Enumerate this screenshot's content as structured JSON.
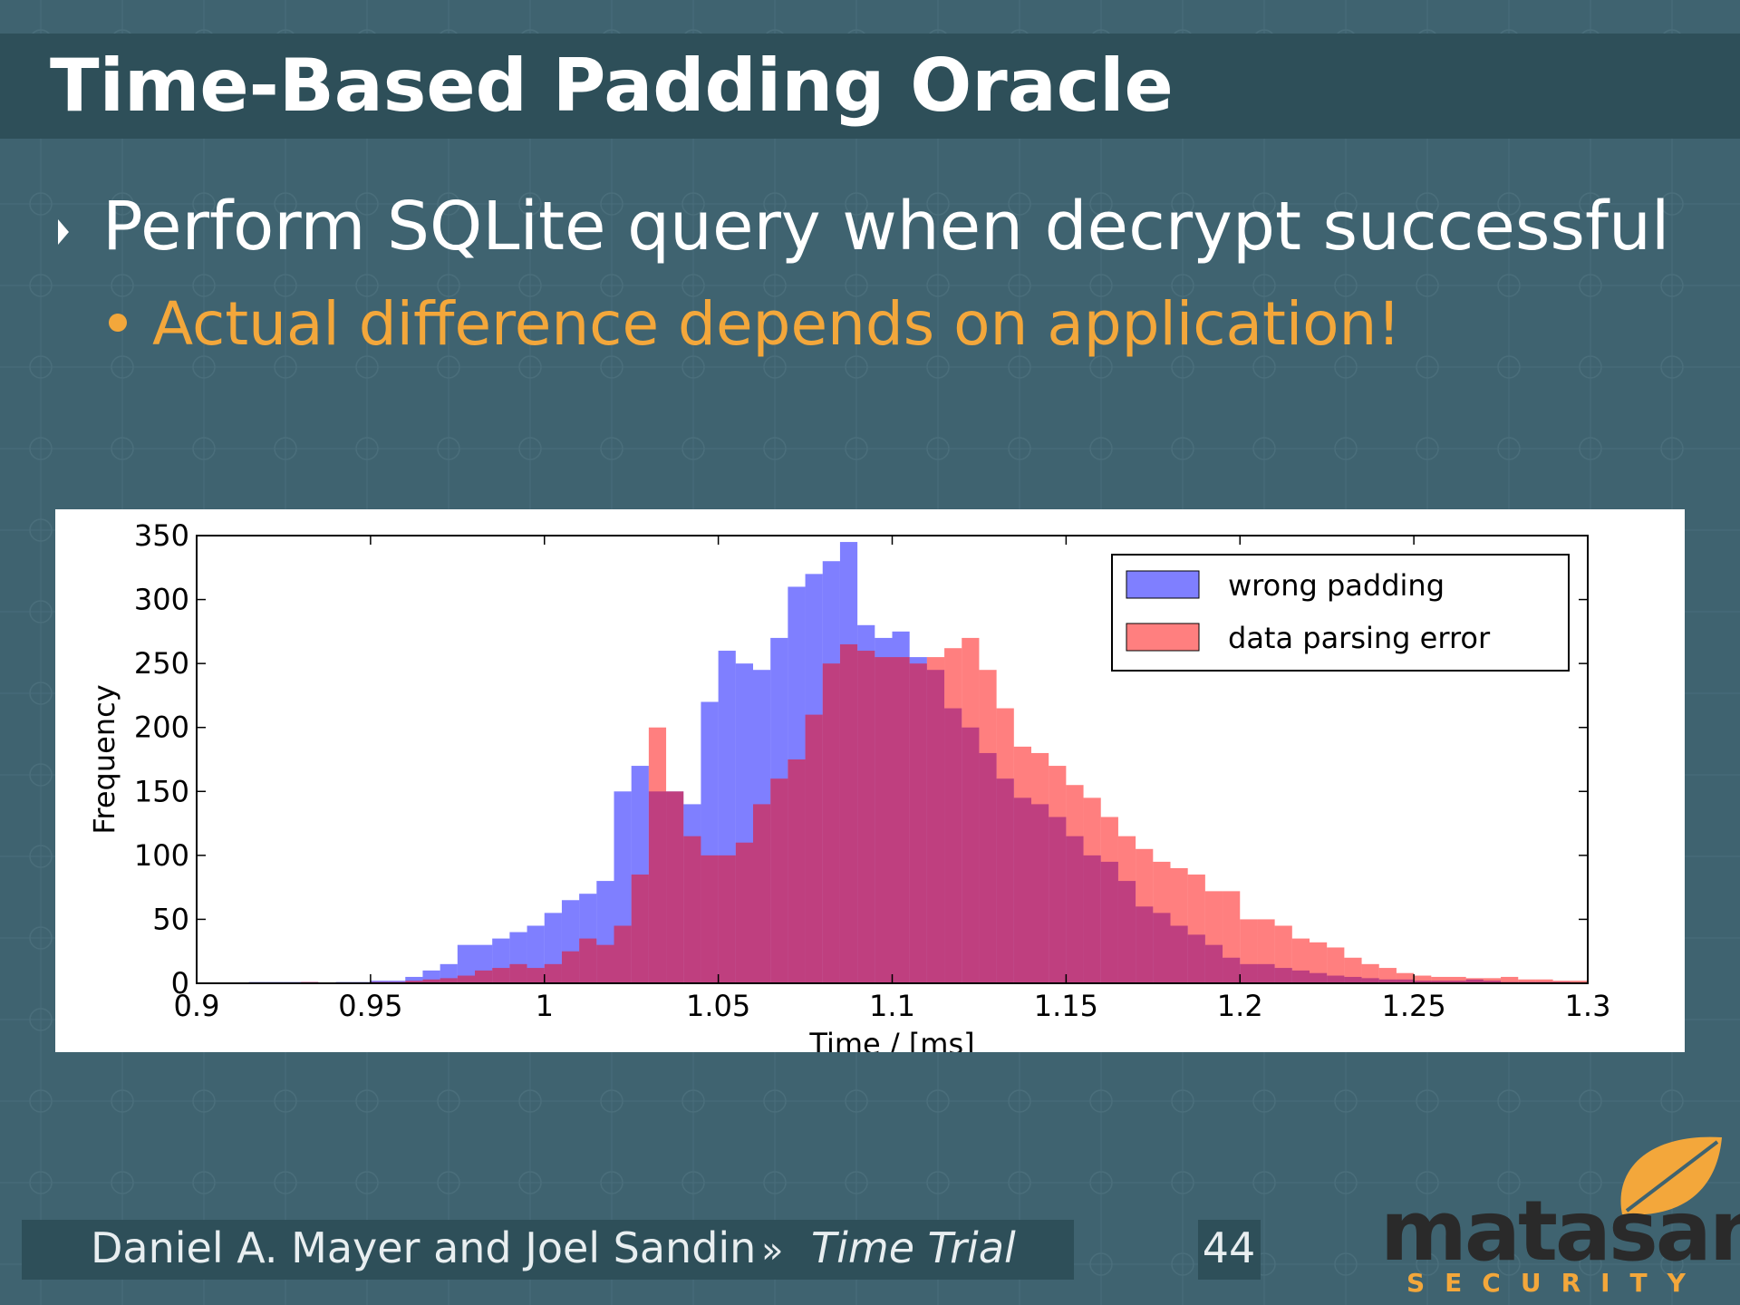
{
  "slide": {
    "title": "Time-Based Padding Oracle",
    "bullet": "Perform SQLite query when decrypt successful",
    "sub_bullet": "Actual difference depends on application!",
    "footer": {
      "authors": "Daniel A. Mayer and Joel Sandin",
      "separator": "»",
      "talk": "Time Trial",
      "page": "44"
    },
    "logo": {
      "name": "matasano",
      "tagline": "SECURITY"
    }
  },
  "chart_data": {
    "type": "histogram",
    "xlabel": "Time / [ms]",
    "ylabel": "Frequency",
    "bins": [
      0.9,
      0.905,
      0.91,
      0.915,
      0.92,
      0.925,
      0.93,
      0.935,
      0.94,
      0.945,
      0.95,
      0.955,
      0.96,
      0.965,
      0.97,
      0.975,
      0.98,
      0.985,
      0.99,
      0.995,
      1,
      1.005,
      1.01,
      1.015,
      1.02,
      1.025,
      1.03,
      1.035,
      1.04,
      1.045,
      1.05,
      1.055,
      1.06,
      1.065,
      1.07,
      1.075,
      1.08,
      1.085,
      1.09,
      1.095,
      1.1,
      1.105,
      1.11,
      1.115,
      1.12,
      1.125,
      1.13,
      1.135,
      1.14,
      1.145,
      1.15,
      1.155,
      1.16,
      1.165,
      1.17,
      1.175,
      1.18,
      1.185,
      1.19,
      1.195,
      1.2,
      1.205,
      1.21,
      1.215,
      1.22,
      1.225,
      1.23,
      1.235,
      1.24,
      1.245,
      1.25,
      1.255,
      1.26,
      1.265,
      1.27,
      1.275,
      1.28,
      1.285,
      1.29,
      1.295,
      1.3
    ],
    "series": [
      {
        "name": "wrong padding",
        "color": "#0000ff",
        "values": [
          0,
          0,
          0,
          1,
          1,
          1,
          1,
          0,
          1,
          1,
          2,
          2,
          5,
          10,
          15,
          30,
          30,
          35,
          40,
          45,
          55,
          65,
          70,
          80,
          150,
          170,
          150,
          150,
          140,
          220,
          260,
          250,
          245,
          270,
          310,
          320,
          330,
          345,
          280,
          270,
          275,
          255,
          245,
          215,
          200,
          180,
          160,
          145,
          140,
          130,
          115,
          100,
          95,
          80,
          60,
          55,
          45,
          38,
          30,
          20,
          15,
          15,
          12,
          10,
          8,
          6,
          5,
          4,
          3,
          3,
          2,
          2,
          2,
          3,
          2,
          1,
          1,
          1,
          1,
          0
        ]
      },
      {
        "name": "data parsing error",
        "color": "#ff0000",
        "values": [
          0,
          0,
          0,
          0,
          0,
          0,
          1,
          0,
          0,
          0,
          1,
          1,
          2,
          3,
          4,
          6,
          10,
          12,
          15,
          12,
          15,
          25,
          35,
          30,
          45,
          85,
          200,
          150,
          115,
          100,
          100,
          110,
          140,
          160,
          175,
          210,
          250,
          265,
          260,
          255,
          255,
          250,
          255,
          262,
          270,
          245,
          215,
          185,
          180,
          170,
          155,
          145,
          130,
          115,
          105,
          95,
          90,
          85,
          72,
          72,
          50,
          50,
          45,
          35,
          32,
          28,
          20,
          15,
          12,
          8,
          6,
          5,
          5,
          4,
          4,
          5,
          3,
          3,
          2,
          2
        ]
      }
    ],
    "alpha": 0.5,
    "xlim": [
      0.9,
      1.3
    ],
    "xticks": [
      0.9,
      0.95,
      1,
      1.05,
      1.1,
      1.15,
      1.2,
      1.25,
      1.3
    ],
    "ylim": [
      0,
      350
    ],
    "yticks": [
      0,
      50,
      100,
      150,
      200,
      250,
      300,
      350
    ],
    "legend": "upper right"
  }
}
